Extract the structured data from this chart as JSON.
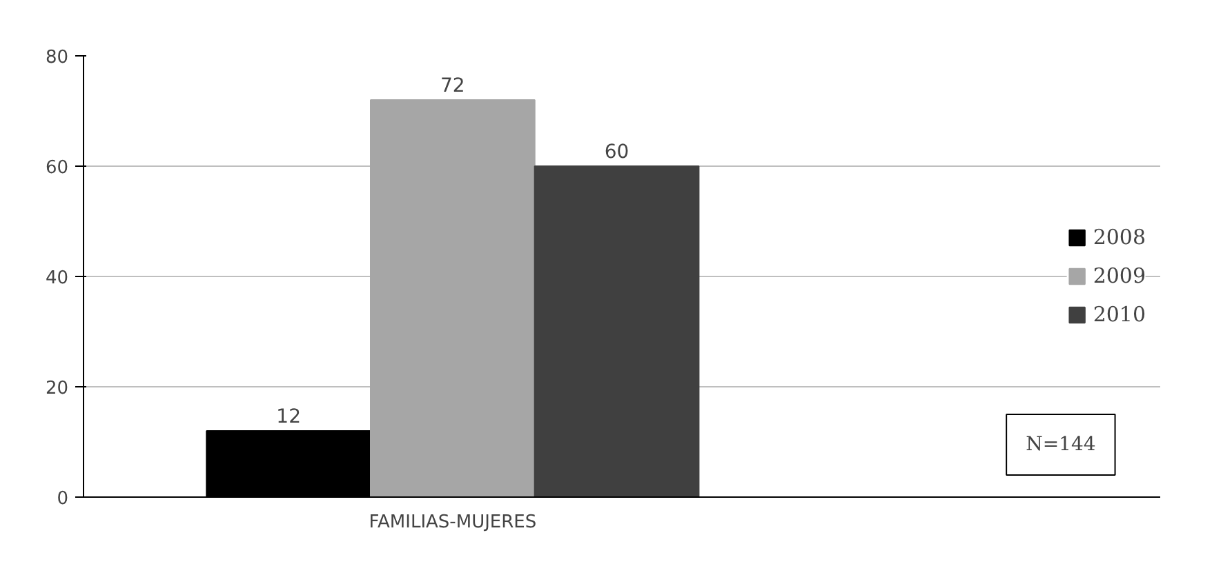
{
  "chart_data": {
    "type": "bar",
    "categories": [
      "FAMILIAS-MUJERES"
    ],
    "series": [
      {
        "name": "2008",
        "color": "#000000",
        "values": [
          12
        ]
      },
      {
        "name": "2009",
        "color": "#a6a6a6",
        "values": [
          72
        ]
      },
      {
        "name": "2010",
        "color": "#404040",
        "values": [
          60
        ]
      }
    ],
    "ylim": [
      0,
      80
    ],
    "yticks": [
      0,
      20,
      40,
      60,
      80
    ],
    "grid": "y",
    "legend": "right",
    "data_labels": true,
    "annotations": [
      "N=144"
    ]
  }
}
